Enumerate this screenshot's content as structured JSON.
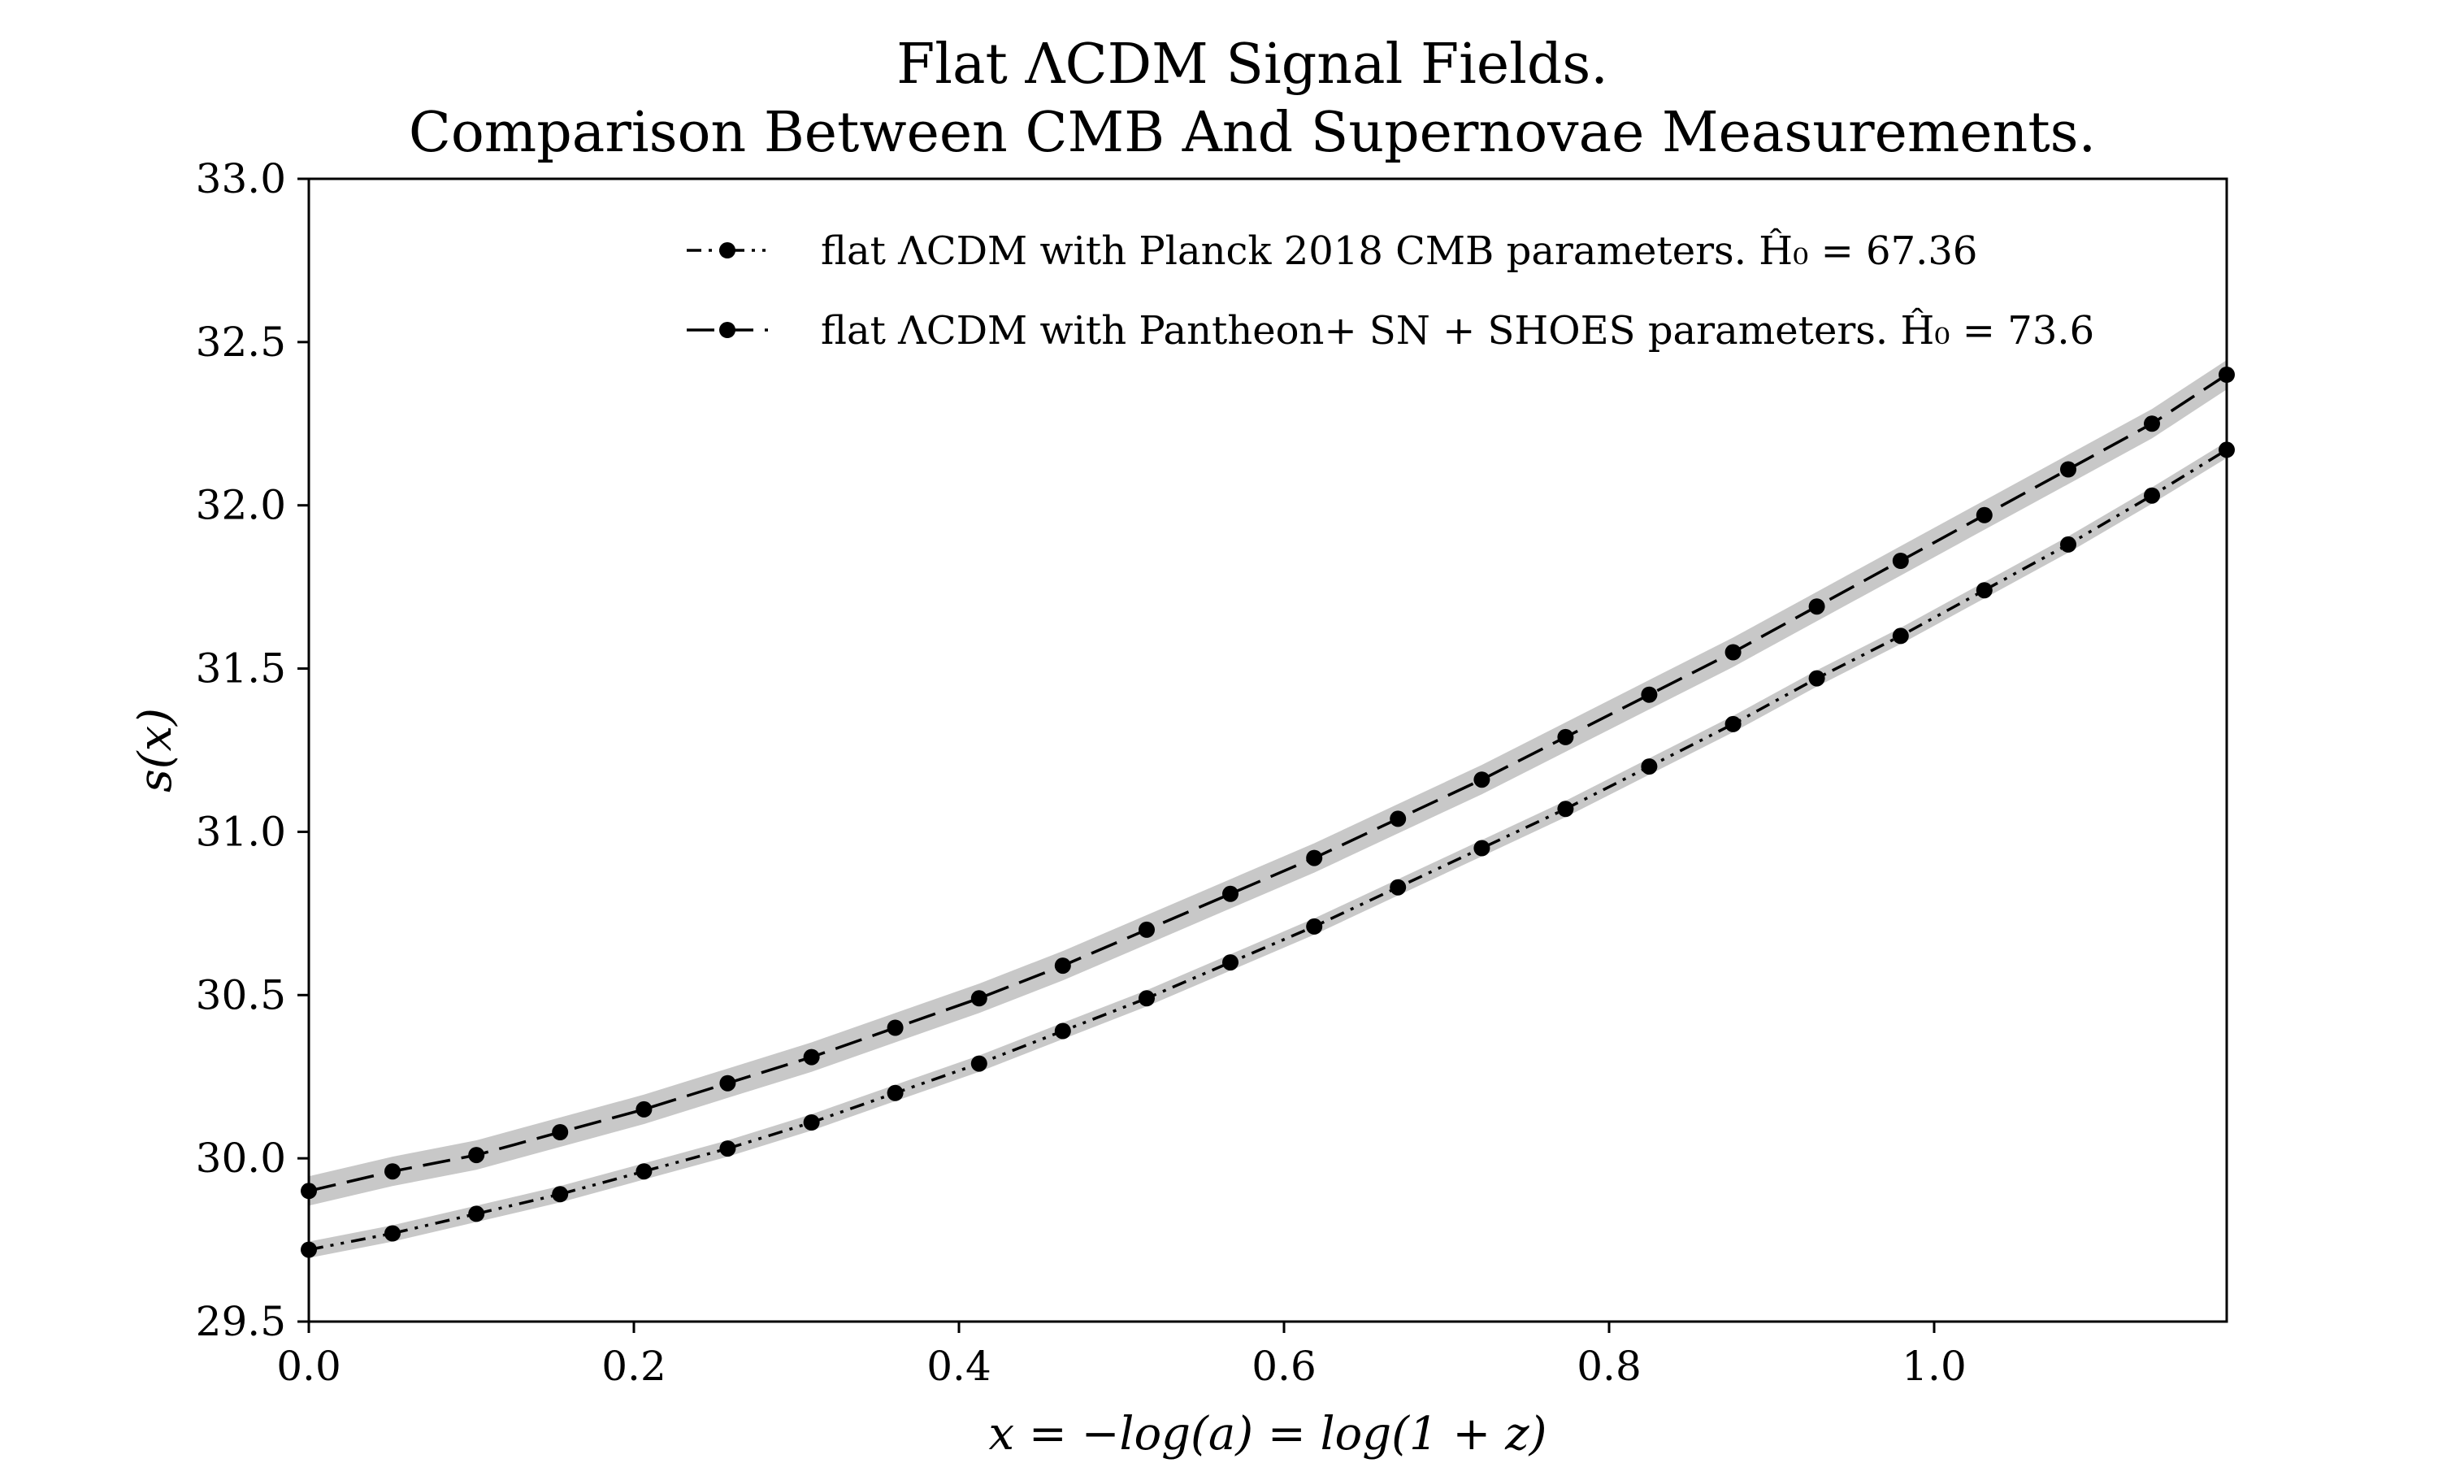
{
  "chart_data": {
    "type": "line",
    "title": "Flat ΛCDM Signal Fields.",
    "subtitle": "Comparison Between CMB And Supernovae Measurements.",
    "xlabel": "x = −log(a) = log(1 + z)",
    "ylabel": "s(x)",
    "xlim": [
      0.0,
      1.18
    ],
    "ylim": [
      29.5,
      33.0
    ],
    "xticks": [
      0.0,
      0.2,
      0.4,
      0.6,
      0.8,
      1.0
    ],
    "xtick_labels": [
      "0.0",
      "0.2",
      "0.4",
      "0.6",
      "0.8",
      "1.0"
    ],
    "yticks": [
      29.5,
      30.0,
      30.5,
      31.0,
      31.5,
      32.0,
      32.5,
      33.0
    ],
    "ytick_labels": [
      "29.5",
      "30.0",
      "30.5",
      "31.0",
      "31.5",
      "32.0",
      "32.5",
      "33.0"
    ],
    "grid": false,
    "legend_position": "top-right",
    "band_color": "#c8c8c8",
    "line_color": "#000000",
    "x": [
      0.0,
      0.0515,
      0.1031,
      0.1546,
      0.2062,
      0.2577,
      0.3093,
      0.3608,
      0.4124,
      0.4639,
      0.5155,
      0.567,
      0.6186,
      0.6701,
      0.7217,
      0.7732,
      0.8247,
      0.8763,
      0.9278,
      0.9794,
      1.0309,
      1.0825,
      1.134,
      1.18
    ],
    "series": [
      {
        "name": "flat ΛCDM with Planck 2018 CMB parameters. Ĥ₀ = 67.36",
        "linestyle": "dashdotdot",
        "band_halfwidth": 0.025,
        "values": [
          29.72,
          29.77,
          29.83,
          29.89,
          29.96,
          30.03,
          30.11,
          30.2,
          30.29,
          30.39,
          30.49,
          30.6,
          30.71,
          30.83,
          30.95,
          31.07,
          31.2,
          31.33,
          31.47,
          31.6,
          31.74,
          31.88,
          32.03,
          32.17
        ]
      },
      {
        "name": "flat ΛCDM with Pantheon+ SN + SHOES parameters. Ĥ₀ = 73.6",
        "linestyle": "dashed",
        "band_halfwidth": 0.045,
        "values": [
          29.9,
          29.96,
          30.01,
          30.08,
          30.15,
          30.23,
          30.31,
          30.4,
          30.49,
          30.59,
          30.7,
          30.81,
          30.92,
          31.04,
          31.16,
          31.29,
          31.42,
          31.55,
          31.69,
          31.83,
          31.97,
          32.11,
          32.25,
          32.4
        ]
      }
    ]
  }
}
